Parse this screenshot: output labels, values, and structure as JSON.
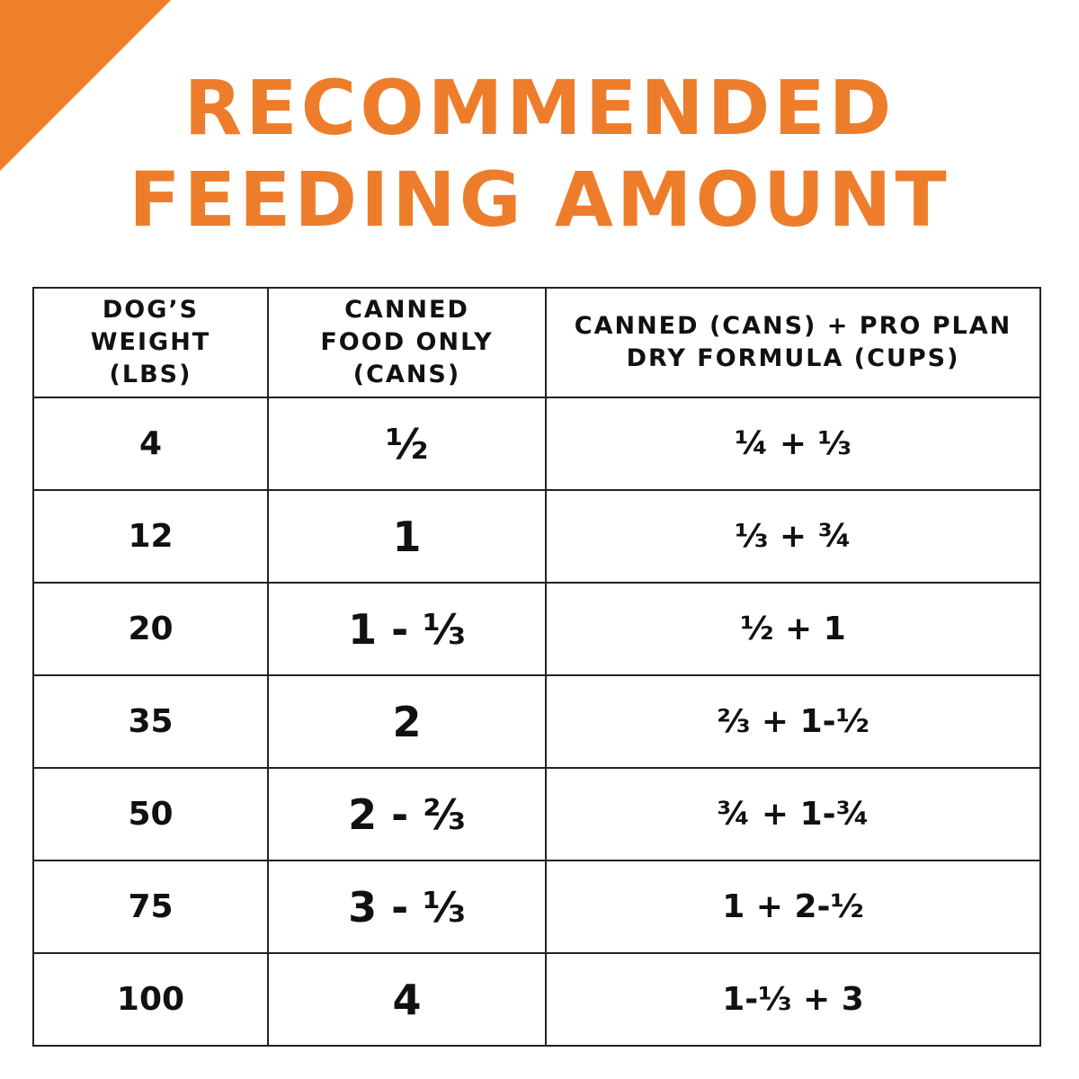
{
  "header": {
    "title_line1": "RECOMMENDED",
    "title_line2": "FEEDING AMOUNT"
  },
  "table": {
    "headers": [
      [
        "DOG’S",
        "WEIGHT",
        "(LBS)"
      ],
      [
        "CANNED",
        "FOOD ONLY",
        "(CANS)"
      ],
      [
        "CANNED (CANS) + PRO PLAN",
        "DRY FORMULA (CUPS)"
      ]
    ],
    "rows": [
      [
        "4",
        "½",
        "¼ + ⅓"
      ],
      [
        "12",
        "1",
        "⅓ + ¾"
      ],
      [
        "20",
        "1 - ⅓",
        "½ + 1"
      ],
      [
        "35",
        "2",
        "⅔ + 1-½"
      ],
      [
        "50",
        "2 - ⅔",
        "¾ + 1-¾"
      ],
      [
        "75",
        "3 - ⅓",
        "1 + 2-½"
      ],
      [
        "100",
        "4",
        "1-⅓ + 3"
      ]
    ]
  }
}
